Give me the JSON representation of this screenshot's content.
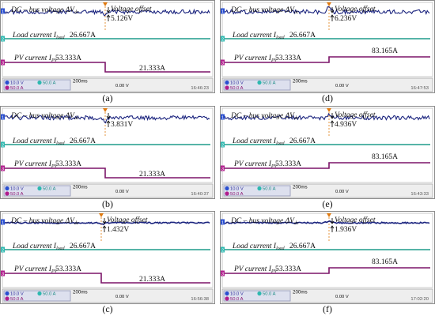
{
  "chart_data": [
    {
      "id": "a",
      "type": "line",
      "caption": "(a)",
      "dc_label": "DC – bus voltage ΔV",
      "dc_sub": "dc",
      "offset_label": "Voltage offset",
      "offset_value": "5.126V",
      "load_label": "Load current I",
      "load_sub": "load",
      "load_value": "26.667A",
      "pv_label": "PV current I",
      "pv_sub": "PV",
      "pv_before": "53.333A",
      "pv_after": "21.333A",
      "pv_direction": "down",
      "status": {
        "ch1": "10.0 V",
        "ch2": "50.0 A",
        "ch3": "50.0 A",
        "time": "200ms",
        "trig": "0.00 V",
        "clock": "16:46:23"
      }
    },
    {
      "id": "b",
      "type": "line",
      "caption": "(b)",
      "dc_label": "DC – bus voltage ΔV",
      "dc_sub": "dc",
      "offset_label": "",
      "offset_value": "3.831V",
      "load_label": "Load current I",
      "load_sub": "load",
      "load_value": "26.667A",
      "pv_label": "PV current I",
      "pv_sub": "PV",
      "pv_before": "53.333A",
      "pv_after": "21.333A",
      "pv_direction": "down",
      "status": {
        "ch1": "10.0 V",
        "ch2": "50.0 A",
        "ch3": "50.0 A",
        "time": "200ms",
        "trig": "0.00 V",
        "clock": "16:40:37"
      }
    },
    {
      "id": "c",
      "type": "line",
      "caption": "(c)",
      "dc_label": "DC – bus voltage ΔV",
      "dc_sub": "dc",
      "offset_label": "Voltage offset",
      "offset_value": "1.432V",
      "load_label": "Load current I",
      "load_sub": "load",
      "load_value": "26.667A",
      "pv_label": "PV current I",
      "pv_sub": "PV",
      "pv_before": "53.333A",
      "pv_after": "21.333A",
      "pv_direction": "down",
      "status": {
        "ch1": "10.0 V",
        "ch2": "50.0 A",
        "ch3": "50.0 A",
        "time": "200ms",
        "trig": "0.00 V",
        "clock": "16:56:38"
      }
    },
    {
      "id": "d",
      "type": "line",
      "caption": "(d)",
      "dc_label": "DC – bus voltage ΔV",
      "dc_sub": "dc",
      "offset_label": "Voltage offset",
      "offset_value": "6.236V",
      "load_label": "Load current I",
      "load_sub": "load",
      "load_value": "26.667A",
      "pv_label": "PV current I",
      "pv_sub": "PV",
      "pv_before": "53.333A",
      "pv_after": "83.165A",
      "pv_direction": "up",
      "status": {
        "ch1": "10.0 V",
        "ch2": "50.0 A",
        "ch3": "50.0 A",
        "time": "200ms",
        "trig": "0.00 V",
        "clock": "16:47:53"
      }
    },
    {
      "id": "e",
      "type": "line",
      "caption": "(e)",
      "dc_label": "DC – bus voltage ΔV",
      "dc_sub": "dc",
      "offset_label": "Voltage offset",
      "offset_value": "4.936V",
      "load_label": "Load current I",
      "load_sub": "load",
      "load_value": "26.667A",
      "pv_label": "PV current I",
      "pv_sub": "PV",
      "pv_before": "53.333A",
      "pv_after": "83.165A",
      "pv_direction": "up",
      "status": {
        "ch1": "10.0 V",
        "ch2": "50.0 A",
        "ch3": "50.0 A",
        "time": "200ms",
        "trig": "0.00 V",
        "clock": "16:43:33"
      }
    },
    {
      "id": "f",
      "type": "line",
      "caption": "(f)",
      "dc_label": "DC – bus voltage ΔV",
      "dc_sub": "dc",
      "offset_label": "Voltage offset",
      "offset_value": "1.936V",
      "load_label": "Load current I",
      "load_sub": "load",
      "load_value": "26.667A",
      "pv_label": "PV current I",
      "pv_sub": "PV",
      "pv_before": "53.333A",
      "pv_after": "83.165A",
      "pv_direction": "up",
      "status": {
        "ch1": "10.0 V",
        "ch2": "50.0 A",
        "ch3": "50.0 A",
        "time": "200ms",
        "trig": "0.00 V",
        "clock": "17:02:20"
      }
    }
  ],
  "colors": {
    "dc_trace": "#1a237e",
    "load_trace": "#1e9c8c",
    "pv_trace": "#7b1468",
    "ch1_tag": "#2a4fd0",
    "ch2_tag": "#2eb8b0",
    "ch3_tag": "#b01c8c"
  }
}
